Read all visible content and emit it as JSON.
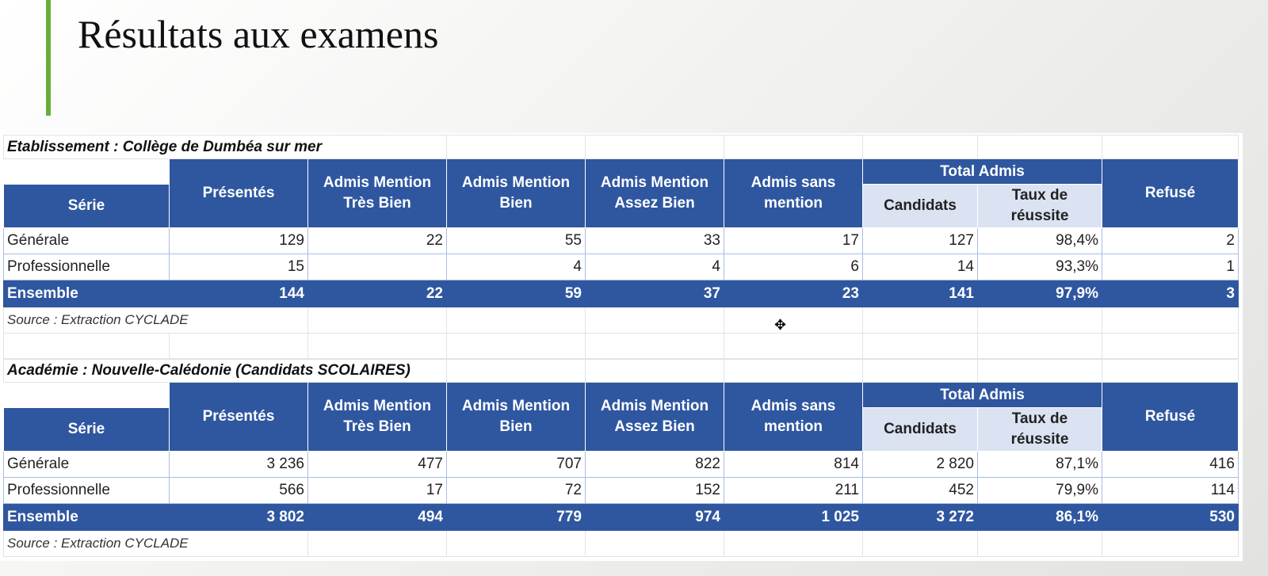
{
  "slide_title": "Résultats aux examens",
  "accent_color": "#6aac3c",
  "header_color": "#2f57a0",
  "headers": {
    "serie": "Série",
    "presentes": "Présentés",
    "tres_bien": "Admis Mention Très Bien",
    "bien": "Admis Mention Bien",
    "assez_bien": "Admis Mention Assez Bien",
    "sans_mention": "Admis sans mention",
    "total_admis": "Total Admis",
    "candidats": "Candidats",
    "taux": "Taux de réussite",
    "refuse": "Refusé"
  },
  "tables": [
    {
      "title": "Etablissement : Collège de Dumbéa sur mer",
      "rows": [
        [
          "Générale",
          "129",
          "22",
          "55",
          "33",
          "17",
          "127",
          "98,4%",
          "2"
        ],
        [
          "Professionnelle",
          "15",
          "",
          "4",
          "4",
          "6",
          "14",
          "93,3%",
          "1"
        ]
      ],
      "total": [
        "Ensemble",
        "144",
        "22",
        "59",
        "37",
        "23",
        "141",
        "97,9%",
        "3"
      ],
      "source": "Source : Extraction CYCLADE"
    },
    {
      "title": "Académie : Nouvelle-Calédonie (Candidats SCOLAIRES)",
      "rows": [
        [
          "Générale",
          "3 236",
          "477",
          "707",
          "822",
          "814",
          "2 820",
          "87,1%",
          "416"
        ],
        [
          "Professionnelle",
          "566",
          "17",
          "72",
          "152",
          "211",
          "452",
          "79,9%",
          "114"
        ]
      ],
      "total": [
        "Ensemble",
        "3 802",
        "494",
        "779",
        "974",
        "1 025",
        "3 272",
        "86,1%",
        "530"
      ],
      "source": "Source : Extraction CYCLADE"
    }
  ]
}
